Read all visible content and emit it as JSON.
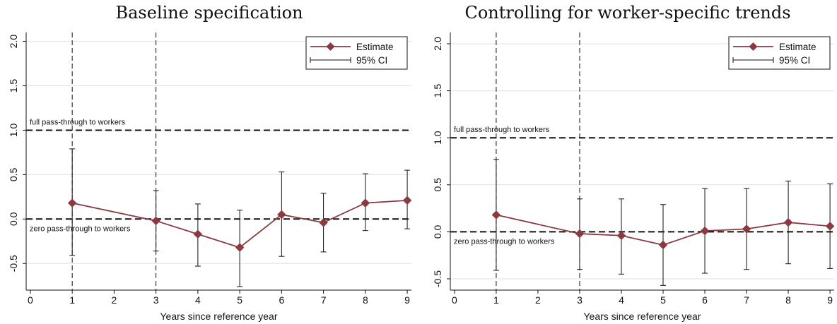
{
  "chart_data": [
    {
      "type": "line",
      "title": "Baseline specification",
      "xlabel": "Years since reference year",
      "ylabel": "",
      "xlim": [
        -0.1,
        9.1
      ],
      "ylim": [
        -0.8,
        2.1
      ],
      "x_ticks": [
        "0",
        "1",
        "2",
        "3",
        "4",
        "5",
        "6",
        "7",
        "8",
        "9"
      ],
      "y_ticks": [
        "-0.5",
        "0.0",
        "0.5",
        "1.0",
        "1.5",
        "2.0"
      ],
      "grid": true,
      "legend_position": "top-right",
      "series": [
        {
          "name": "Estimate",
          "color": "#8b3a3f",
          "marker": "diamond",
          "x": [
            1,
            3,
            4,
            5,
            6,
            7,
            8,
            9
          ],
          "y": [
            0.18,
            -0.02,
            -0.17,
            -0.32,
            0.05,
            -0.04,
            0.18,
            0.21
          ]
        },
        {
          "name": "95% CI",
          "color": "#111111",
          "style": "capped-range",
          "x": [
            1,
            3,
            4,
            5,
            6,
            7,
            8,
            9
          ],
          "lower": [
            -0.41,
            -0.36,
            -0.53,
            -0.76,
            -0.42,
            -0.37,
            -0.13,
            -0.11
          ],
          "upper": [
            0.79,
            0.32,
            0.17,
            0.1,
            0.53,
            0.29,
            0.51,
            0.55
          ]
        }
      ],
      "vertical_lines": [
        1,
        3
      ],
      "reference_lines": [
        {
          "y": 1.0,
          "label": "full pass-through to workers",
          "label_pos": "above"
        },
        {
          "y": 0.0,
          "label": "zero pass-through to workers",
          "label_pos": "below"
        }
      ]
    },
    {
      "type": "line",
      "title": "Controlling for worker-specific trends",
      "xlabel": "Years since reference year",
      "ylabel": "",
      "xlim": [
        -0.1,
        9.1
      ],
      "ylim": [
        -0.62,
        2.12
      ],
      "x_ticks": [
        "0",
        "1",
        "2",
        "3",
        "4",
        "5",
        "6",
        "7",
        "8",
        "9"
      ],
      "y_ticks": [
        "-0.5",
        "0.0",
        "0.5",
        "1.0",
        "1.5",
        "2.0"
      ],
      "grid": true,
      "legend_position": "top-right",
      "series": [
        {
          "name": "Estimate",
          "color": "#8b3a3f",
          "marker": "diamond",
          "x": [
            1,
            3,
            4,
            5,
            6,
            7,
            8,
            9
          ],
          "y": [
            0.18,
            -0.02,
            -0.04,
            -0.14,
            0.01,
            0.03,
            0.1,
            0.06
          ]
        },
        {
          "name": "95% CI",
          "color": "#111111",
          "style": "capped-range",
          "x": [
            1,
            3,
            4,
            5,
            6,
            7,
            8,
            9
          ],
          "lower": [
            -0.41,
            -0.4,
            -0.45,
            -0.57,
            -0.44,
            -0.4,
            -0.34,
            -0.39
          ],
          "upper": [
            0.77,
            0.35,
            0.35,
            0.29,
            0.46,
            0.46,
            0.54,
            0.51
          ]
        }
      ],
      "vertical_lines": [
        1,
        3
      ],
      "reference_lines": [
        {
          "y": 1.0,
          "label": "full pass-through to workers",
          "label_pos": "above"
        },
        {
          "y": 0.0,
          "label": "zero pass-through to workers",
          "label_pos": "below"
        }
      ]
    }
  ]
}
